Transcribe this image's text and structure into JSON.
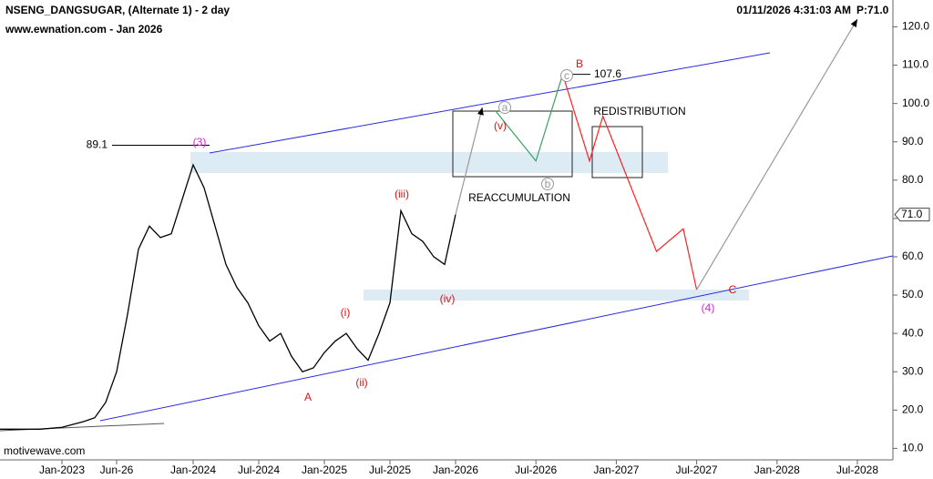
{
  "header": {
    "title": "NSENG_DANGSUGAR, (Alternate 1) - 2 day",
    "subtitle": "www.ewnation.com  - Jan 2026",
    "timestamp": "01/11/2026 4:31:03 AM",
    "price": "P:71.0"
  },
  "footer": {
    "source": "motivewave.com"
  },
  "chart_data": {
    "type": "line",
    "xlim": [
      "2022-07",
      "2028-09"
    ],
    "xticks": [
      {
        "value": "2023-01",
        "label": "Jan-2023"
      },
      {
        "value": "2023-06",
        "label": "Jun-26"
      },
      {
        "value": "2024-01",
        "label": "Jan-2024"
      },
      {
        "value": "2024-07",
        "label": "Jul-2024"
      },
      {
        "value": "2025-01",
        "label": "Jan-2025"
      },
      {
        "value": "2025-07",
        "label": "Jul-2025"
      },
      {
        "value": "2026-01",
        "label": "Jan-2026"
      },
      {
        "value": "2026-07",
        "label": "Jul-2026"
      },
      {
        "value": "2027-01",
        "label": "Jan-2027"
      },
      {
        "value": "2027-07",
        "label": "Jul-2027"
      },
      {
        "value": "2028-01",
        "label": "Jan-2028"
      },
      {
        "value": "2028-07",
        "label": "Jul-2028"
      }
    ],
    "ylim": [
      7,
      127
    ],
    "yticks": [
      {
        "value": 10,
        "label": "10.0"
      },
      {
        "value": 20,
        "label": "20.0"
      },
      {
        "value": 30,
        "label": "30.0"
      },
      {
        "value": 40,
        "label": "40.0"
      },
      {
        "value": 50,
        "label": "50.0"
      },
      {
        "value": 60,
        "label": "60.0"
      },
      {
        "value": 70,
        "label": "70.0"
      },
      {
        "value": 80,
        "label": "80.0"
      },
      {
        "value": 90,
        "label": "90.0"
      },
      {
        "value": 100,
        "label": "100.0"
      },
      {
        "value": 110,
        "label": "110.0"
      },
      {
        "value": 120,
        "label": "120.0"
      }
    ],
    "last_price": {
      "value": 71,
      "label": "71.0"
    },
    "levels": [
      89.1,
      107.6
    ],
    "series": [
      {
        "color": "#000000",
        "x": [
          "2022-07",
          "2022-09",
          "2022-11",
          "2023-01",
          "2023-03",
          "2023-04",
          "2023-05",
          "2023-06",
          "2023-07",
          "2023-08",
          "2023-09",
          "2023-10",
          "2023-11",
          "2023-12",
          "2024-01",
          "2024-02",
          "2024-03",
          "2024-04",
          "2024-05",
          "2024-06",
          "2024-07",
          "2024-08",
          "2024-09",
          "2024-10",
          "2024-11",
          "2024-12",
          "2025-01",
          "2025-02",
          "2025-03",
          "2025-04",
          "2025-05",
          "2025-06",
          "2025-07",
          "2025-08",
          "2025-09",
          "2025-10",
          "2025-11",
          "2025-12",
          "2026-01"
        ],
        "values": [
          15,
          15,
          15,
          15.5,
          17,
          18,
          22,
          30,
          45,
          62,
          68,
          65,
          66,
          75,
          84,
          78,
          68,
          58,
          52,
          48,
          42,
          38,
          40,
          34,
          30,
          31,
          35,
          38,
          40,
          36,
          33,
          40,
          48,
          72,
          66,
          64,
          60,
          58,
          71
        ]
      },
      {
        "color": "#999999",
        "arrow": true,
        "x": [
          "2026-01",
          "2026-03"
        ],
        "values": [
          71,
          99
        ]
      },
      {
        "color": "#3aa060",
        "x": [
          "2026-04",
          "2026-07",
          "2026-09"
        ],
        "values": [
          98,
          85,
          107.6
        ]
      },
      {
        "color": "#ff2020",
        "x": [
          "2026-09",
          "2026-11",
          "2026-12",
          "2027-04",
          "2027-06",
          "2027-07"
        ],
        "values": [
          107.6,
          85,
          96.7,
          61.4,
          67.3,
          51.4
        ]
      },
      {
        "color": "#999999",
        "arrow": true,
        "x": [
          "2027-07",
          "2028-07"
        ],
        "values": [
          51.4,
          122
        ]
      }
    ],
    "box_labels": [
      "REACCUMULATION",
      "REDISTRIBUTION"
    ],
    "wave_labels": [
      {
        "text": "(3)",
        "color": "#e020e0"
      },
      {
        "text": "A",
        "color": "#e01010"
      },
      {
        "text": "(i)",
        "color": "#e01010"
      },
      {
        "text": "(ii)",
        "color": "#e01010"
      },
      {
        "text": "(iii)",
        "color": "#e01010"
      },
      {
        "text": "(iv)",
        "color": "#e01010"
      },
      {
        "text": "(v)",
        "color": "#e01010"
      },
      {
        "text": "a",
        "color": "#999999"
      },
      {
        "text": "b",
        "color": "#999999"
      },
      {
        "text": "c",
        "color": "#999999"
      },
      {
        "text": "B",
        "color": "#e01010"
      },
      {
        "text": "C",
        "color": "#e01010"
      },
      {
        "text": "(4)",
        "color": "#e020e0"
      }
    ]
  }
}
